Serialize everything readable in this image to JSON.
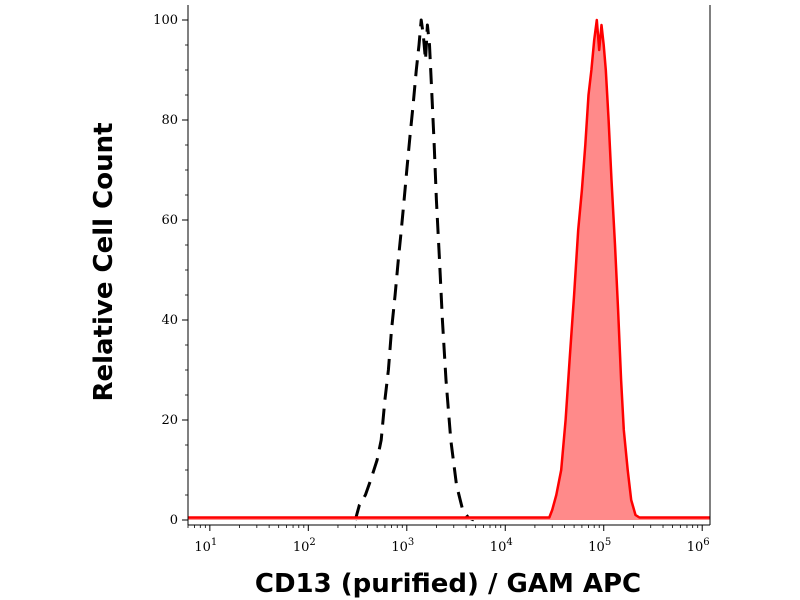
{
  "chart_data": {
    "type": "area",
    "title": "",
    "xlabel": "CD13 (purified) / GAM APC",
    "ylabel": "Relative Cell Count",
    "xscale": "log",
    "xlim": [
      6,
      1200000
    ],
    "ylim": [
      -1,
      103
    ],
    "x_ticks": [
      {
        "value": 10,
        "base": "10",
        "exp": "1"
      },
      {
        "value": 100,
        "base": "10",
        "exp": "2"
      },
      {
        "value": 1000,
        "base": "10",
        "exp": "3"
      },
      {
        "value": 10000,
        "base": "10",
        "exp": "4"
      },
      {
        "value": 100000,
        "base": "10",
        "exp": "5"
      },
      {
        "value": 1000000,
        "base": "10",
        "exp": "6"
      }
    ],
    "y_ticks": [
      {
        "value": 0,
        "label": "0"
      },
      {
        "value": 20,
        "label": "20"
      },
      {
        "value": 40,
        "label": "40"
      },
      {
        "value": 60,
        "label": "60"
      },
      {
        "value": 80,
        "label": "80"
      },
      {
        "value": 100,
        "label": "100"
      }
    ],
    "grid": false,
    "series": [
      {
        "style": "dashed-line",
        "color": "#000000",
        "x": [
          300,
          330,
          380,
          430,
          500,
          550,
          600,
          650,
          700,
          760,
          820,
          880,
          940,
          1000,
          1080,
          1160,
          1250,
          1330,
          1400,
          1470,
          1550,
          1620,
          1700,
          1800,
          1900,
          2000,
          2150,
          2300,
          2500,
          2800,
          3200,
          3700,
          4200,
          4800
        ],
        "y": [
          0,
          3,
          5,
          8,
          12,
          16,
          24,
          30,
          38,
          45,
          52,
          58,
          64,
          70,
          77,
          83,
          90,
          95,
          100,
          97,
          92,
          99,
          95,
          85,
          75,
          64,
          52,
          40,
          28,
          16,
          7,
          2,
          0.5,
          0
        ]
      },
      {
        "style": "filled-area",
        "color": "#ff0000",
        "fill": "#ff8a8a",
        "x": [
          6,
          28000,
          30000,
          33000,
          37000,
          41000,
          45000,
          50000,
          55000,
          60000,
          65000,
          70000,
          75000,
          80000,
          85000,
          90000,
          95000,
          100000,
          105000,
          112000,
          120000,
          130000,
          140000,
          150000,
          160000,
          175000,
          190000,
          210000,
          230000,
          1200000
        ],
        "y": [
          0.5,
          0.5,
          2,
          5,
          10,
          20,
          32,
          45,
          58,
          66,
          75,
          85,
          90,
          96,
          100,
          94,
          99,
          95,
          90,
          80,
          68,
          55,
          42,
          28,
          18,
          10,
          4,
          1,
          0.5,
          0.5
        ]
      }
    ]
  }
}
